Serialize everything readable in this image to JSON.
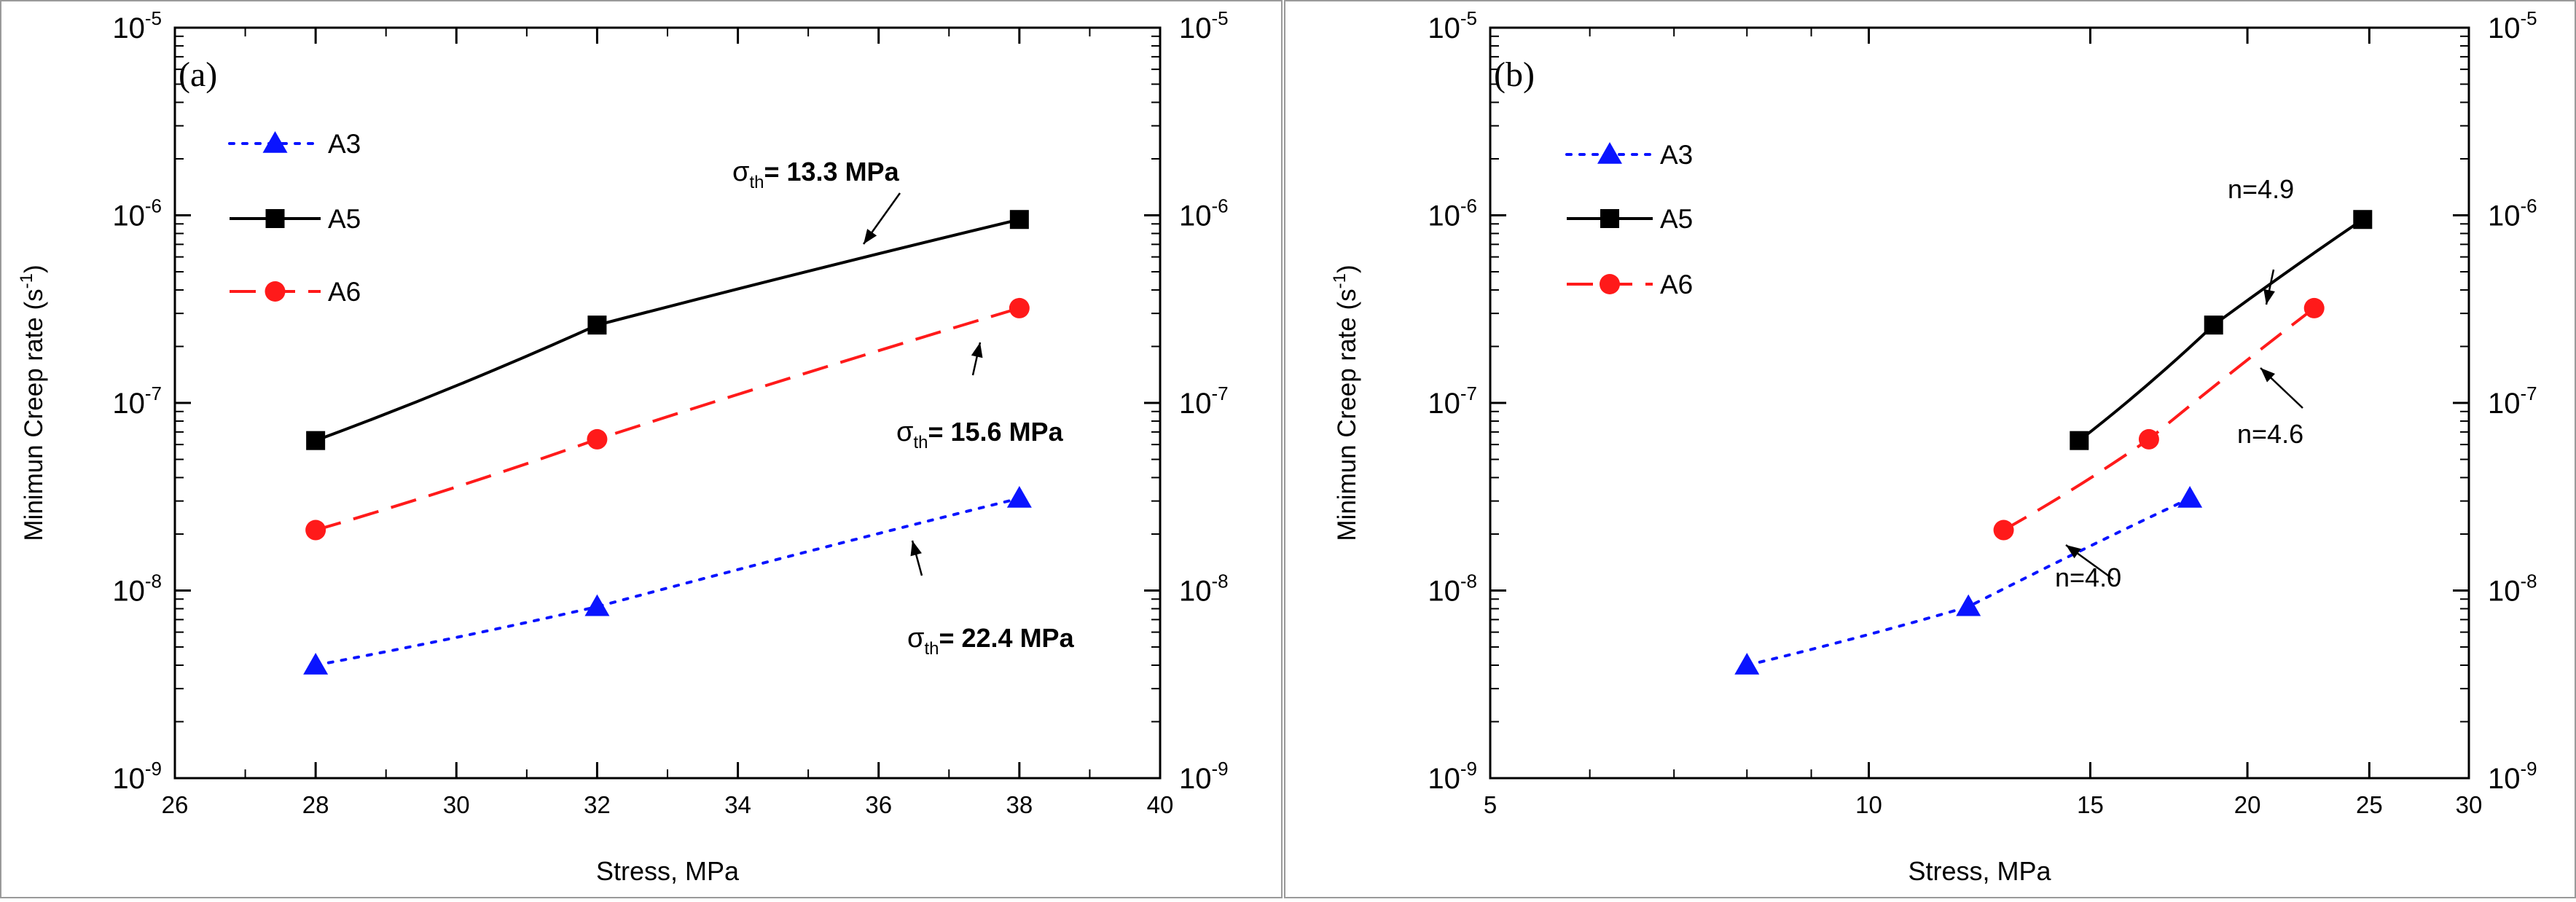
{
  "chart_data": [
    {
      "type": "line",
      "panel_label": "(a)",
      "xlabel": "Stress, MPa",
      "ylabel": "Minimun Creep rate (s",
      "ylabel_sup": "-1",
      "ylabel_close": ")",
      "x_scale": "linear",
      "y_scale": "log",
      "xlim": [
        26,
        40
      ],
      "ylim": [
        1e-09,
        1e-05
      ],
      "x_ticks": [
        26,
        28,
        30,
        32,
        34,
        36,
        38,
        40
      ],
      "x_tick_labels": [
        "26",
        "28",
        "30",
        "32",
        "34",
        "36",
        "38",
        "40"
      ],
      "y_tick_base": "10",
      "y_tick_exps": [
        "-9",
        "-8",
        "-7",
        "-6",
        "-5"
      ],
      "right_axis_ticks": true,
      "legend_position": "top-left",
      "series": [
        {
          "name": "A3",
          "color": "#0a14ff",
          "dash": "dot",
          "marker": "triangle",
          "x": [
            28,
            32,
            38
          ],
          "y": [
            4e-09,
            8.2e-09,
            3.1e-08
          ]
        },
        {
          "name": "A5",
          "color": "#000000",
          "dash": "solid",
          "marker": "square",
          "x": [
            28,
            32,
            38
          ],
          "y": [
            6.3e-08,
            2.6e-07,
            9.5e-07
          ]
        },
        {
          "name": "A6",
          "color": "#ff1a1a",
          "dash": "dash",
          "marker": "circle",
          "x": [
            28,
            32,
            38
          ],
          "y": [
            2.1e-08,
            6.4e-08,
            3.2e-07
          ]
        }
      ],
      "annotations": [
        {
          "sym": "σ",
          "sub": "th",
          "text": "= 13.3 MPa",
          "bold": true
        },
        {
          "sym": "σ",
          "sub": "th",
          "text": "= 15.6 MPa",
          "bold": true
        },
        {
          "sym": "σ",
          "sub": "th",
          "text": "= 22.4 MPa",
          "bold": true
        }
      ]
    },
    {
      "type": "line",
      "panel_label": "(b)",
      "xlabel": "Stress, MPa",
      "ylabel": "Minimun Creep rate (s",
      "ylabel_sup": "-1",
      "ylabel_close": ")",
      "x_scale": "log",
      "y_scale": "log",
      "xlim": [
        5,
        30
      ],
      "ylim": [
        1e-09,
        1e-05
      ],
      "x_ticks": [
        5,
        10,
        15,
        20,
        25,
        30
      ],
      "x_tick_labels": [
        "5",
        "10",
        "15",
        "20",
        "25",
        "30"
      ],
      "y_tick_base": "10",
      "y_tick_exps": [
        "-9",
        "-8",
        "-7",
        "-6",
        "-5"
      ],
      "right_axis_ticks": true,
      "legend_position": "top-left",
      "series": [
        {
          "name": "A3",
          "color": "#0a14ff",
          "dash": "dot",
          "marker": "triangle",
          "x": [
            8,
            12,
            18
          ],
          "y": [
            4e-09,
            8.2e-09,
            3.1e-08
          ]
        },
        {
          "name": "A5",
          "color": "#000000",
          "dash": "solid",
          "marker": "square",
          "x": [
            14.7,
            18.8,
            24.7
          ],
          "y": [
            6.3e-08,
            2.6e-07,
            9.5e-07
          ]
        },
        {
          "name": "A6",
          "color": "#ff1a1a",
          "dash": "dash",
          "marker": "circle",
          "x": [
            12.8,
            16.7,
            22.6
          ],
          "y": [
            2.1e-08,
            6.4e-08,
            3.2e-07
          ]
        }
      ],
      "annotations": [
        {
          "sym": "",
          "sub": "",
          "text": "n=4.9",
          "bold": false
        },
        {
          "sym": "",
          "sub": "",
          "text": "n=4.6",
          "bold": false
        },
        {
          "sym": "",
          "sub": "",
          "text": "n=4.0",
          "bold": false
        }
      ]
    }
  ]
}
